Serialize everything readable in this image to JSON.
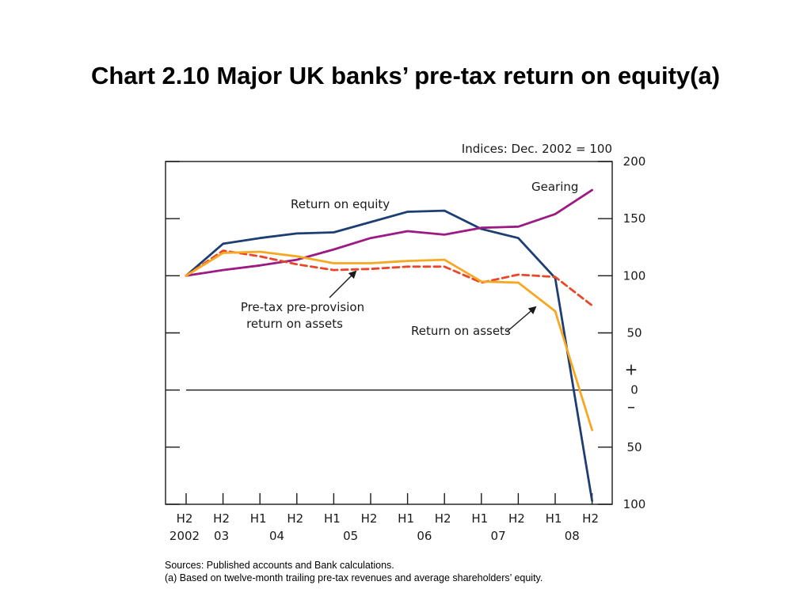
{
  "slide": {
    "title": "Chart 2.10  Major UK banks’ pre-tax return on equity(a)"
  },
  "chart_data": {
    "type": "line",
    "units_label": "Indices:  Dec. 2002 = 100",
    "x_labels": [
      "H2",
      "H2",
      "H1",
      "H2",
      "H1",
      "H2",
      "H1",
      "H2",
      "H1",
      "H2",
      "H1",
      "H2"
    ],
    "x_year_labels": [
      {
        "index": 0,
        "label": "2002"
      },
      {
        "index": 1,
        "label": "03"
      },
      {
        "index": 2.5,
        "label": "04"
      },
      {
        "index": 4.5,
        "label": "05"
      },
      {
        "index": 6.5,
        "label": "06"
      },
      {
        "index": 8.5,
        "label": "07"
      },
      {
        "index": 10.5,
        "label": "08"
      }
    ],
    "y_ticks": [
      {
        "value": 200,
        "label": "200"
      },
      {
        "value": 150,
        "label": "150"
      },
      {
        "value": 100,
        "label": "100"
      },
      {
        "value": 50,
        "label": "50"
      },
      {
        "value": 0,
        "label": "0"
      },
      {
        "value": -50,
        "label": "50"
      },
      {
        "value": -100,
        "label": "100"
      }
    ],
    "ylim": [
      -100,
      200
    ],
    "sign_labels": {
      "plus": "+",
      "minus": "–"
    },
    "zero_line": true,
    "series": [
      {
        "name": "Return on equity",
        "color": "#1d3e73",
        "dash": false,
        "values": [
          100,
          128,
          133,
          137,
          138,
          147,
          156,
          157,
          141,
          133,
          98,
          -97
        ]
      },
      {
        "name": "Gearing",
        "color": "#9b1a84",
        "dash": false,
        "values": [
          100,
          105,
          109,
          114,
          123,
          133,
          139,
          136,
          142,
          143,
          154,
          175
        ]
      },
      {
        "name": "Pre-tax pre-provision return on assets",
        "color": "#e8472a",
        "dash": true,
        "values": [
          100,
          122,
          117,
          110,
          105,
          106,
          108,
          108,
          94,
          101,
          99,
          74
        ]
      },
      {
        "name": "Return on assets",
        "color": "#f7a823",
        "dash": false,
        "values": [
          100,
          120,
          121,
          117,
          111,
          111,
          113,
          114,
          95,
          94,
          69,
          -35
        ]
      }
    ],
    "annotations": [
      {
        "key": "roe",
        "lines": [
          "Return on equity"
        ]
      },
      {
        "key": "gearing",
        "lines": [
          "Gearing"
        ]
      },
      {
        "key": "pppr",
        "lines": [
          "Pre-tax pre-provision",
          "return on assets"
        ]
      },
      {
        "key": "roa",
        "lines": [
          "Return on assets"
        ]
      }
    ]
  },
  "footnotes": {
    "sources": "Sources:  Published accounts and Bank calculations.",
    "note_a": "(a) Based on twelve-month trailing pre-tax revenues and average shareholders’ equity."
  }
}
